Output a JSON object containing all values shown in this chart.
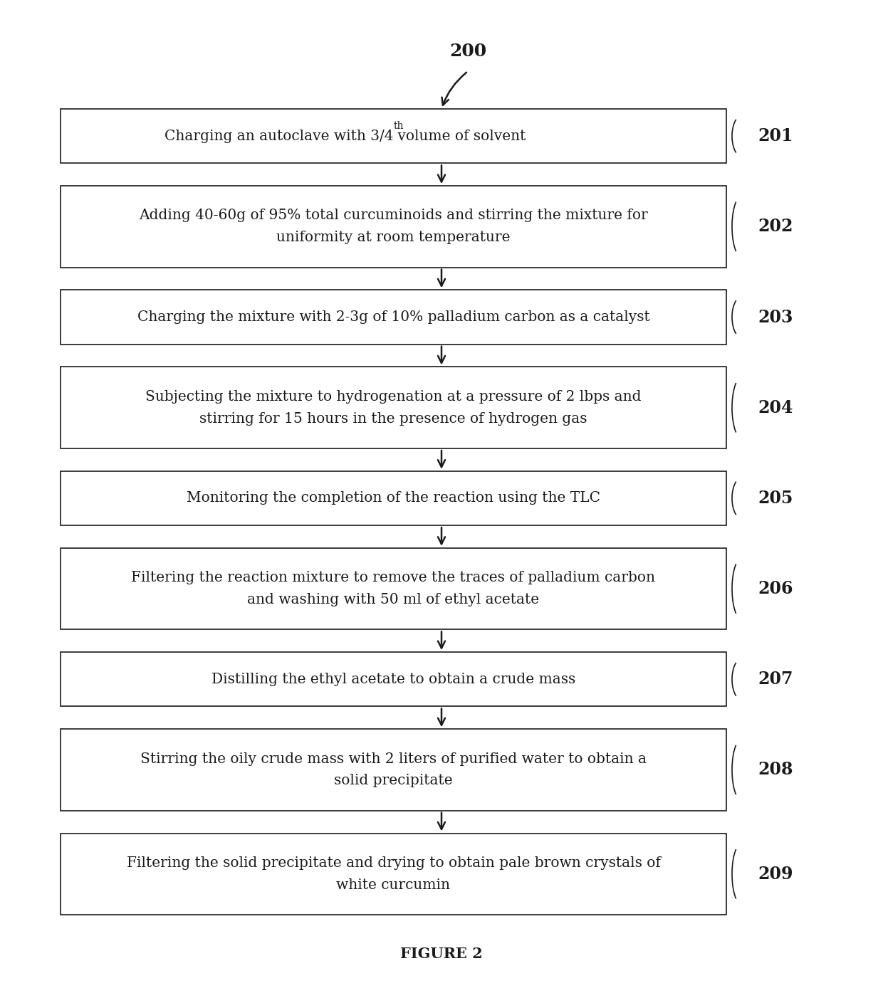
{
  "figure_label": "FIGURE 2",
  "start_label": "200",
  "background_color": "#ffffff",
  "box_edge_color": "#1a1a1a",
  "box_fill_color": "#ffffff",
  "text_color": "#1a1a1a",
  "arrow_color": "#1a1a1a",
  "steps": [
    {
      "id": "201",
      "text_plain": "Charging an autoclave with 3/4",
      "superscript": "th",
      "text_after": " volume of solvent",
      "has_super": true,
      "n_lines": 1
    },
    {
      "id": "202",
      "line1": "Adding 40-60g of 95% total curcuminoids and stirring the mixture for",
      "line2": "uniformity at room temperature",
      "has_super": false,
      "n_lines": 2
    },
    {
      "id": "203",
      "line1": "Charging the mixture with 2-3g of 10% palladium carbon as a catalyst",
      "has_super": false,
      "n_lines": 1
    },
    {
      "id": "204",
      "line1": "Subjecting the mixture to hydrogenation at a pressure of 2 lbps and",
      "line2": "stirring for 15 hours in the presence of hydrogen gas",
      "has_super": false,
      "n_lines": 2
    },
    {
      "id": "205",
      "line1": "Monitoring the completion of the reaction using the TLC",
      "has_super": false,
      "n_lines": 1
    },
    {
      "id": "206",
      "line1": "Filtering the reaction mixture to remove the traces of palladium carbon",
      "line2": "and washing with 50 ml of ethyl acetate",
      "has_super": false,
      "n_lines": 2
    },
    {
      "id": "207",
      "line1": "Distilling the ethyl acetate to obtain a crude mass",
      "has_super": false,
      "n_lines": 1
    },
    {
      "id": "208",
      "line1": "Stirring the oily crude mass with 2 liters of purified water to obtain a",
      "line2": "solid precipitate",
      "has_super": false,
      "n_lines": 2
    },
    {
      "id": "209",
      "line1": "Filtering the solid precipitate and drying to obtain pale brown crystals of",
      "line2": "white curcumin",
      "has_super": false,
      "n_lines": 2
    }
  ]
}
